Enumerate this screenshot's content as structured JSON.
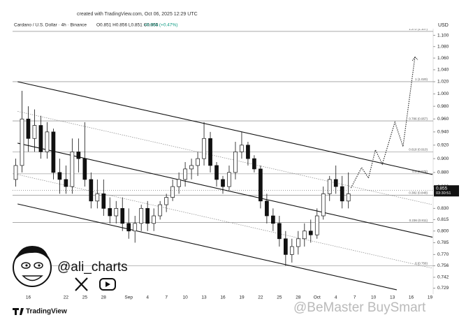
{
  "chart_data": {
    "type": "candlestick",
    "created": "created with TradingView.com, Oct 06, 2025 12:29 UTC",
    "symbol": "Cardano / U.S. Dollar · 4h · Binance",
    "ohlc": "O0.851 H0.856 L0.851 C0.855",
    "change": "+0.004 (+0.47%)",
    "currency": "USD",
    "log_scale": true,
    "ylim": [
      0.722,
      1.112
    ],
    "yticks": [
      {
        "value": 1.1,
        "label": "1.100"
      },
      {
        "value": 1.08,
        "label": "1.080"
      },
      {
        "value": 1.06,
        "label": "1.060"
      },
      {
        "value": 1.04,
        "label": "1.040"
      },
      {
        "value": 1.02,
        "label": "1.020"
      },
      {
        "value": 1.0,
        "label": "1.000"
      },
      {
        "value": 0.98,
        "label": "0.980"
      },
      {
        "value": 0.96,
        "label": "0.960"
      },
      {
        "value": 0.94,
        "label": "0.940"
      },
      {
        "value": 0.92,
        "label": "0.920"
      },
      {
        "value": 0.9,
        "label": "0.900"
      },
      {
        "value": 0.88,
        "label": "0.880"
      },
      {
        "value": 0.86,
        "label": "0.860"
      },
      {
        "value": 0.83,
        "label": "0.830"
      },
      0.815,
      {
        "value": 0.8,
        "label": "0.800"
      },
      0.785,
      {
        "value": 0.77,
        "label": "0.770"
      },
      0.756,
      0.742,
      0.729
    ],
    "xlim": [
      -2.5,
      64.5
    ],
    "xticks": [
      {
        "value": 0,
        "label": "16"
      },
      {
        "value": 6,
        "label": "22"
      },
      {
        "value": 9,
        "label": "25"
      },
      {
        "value": 12,
        "label": "28"
      },
      {
        "value": 16,
        "label": "Sep"
      },
      {
        "value": 19,
        "label": "4"
      },
      {
        "value": 22,
        "label": "7"
      },
      {
        "value": 25,
        "label": "10"
      },
      {
        "value": 28,
        "label": "13"
      },
      {
        "value": 31,
        "label": "16"
      },
      {
        "value": 34,
        "label": "19"
      },
      {
        "value": 37,
        "label": "22"
      },
      {
        "value": 40,
        "label": "25"
      },
      {
        "value": 43,
        "label": "28"
      },
      {
        "value": 46,
        "label": "Oct"
      },
      {
        "value": 49,
        "label": "4"
      },
      {
        "value": 52,
        "label": "7"
      },
      {
        "value": 55,
        "label": "10"
      },
      {
        "value": 58,
        "label": "13"
      },
      {
        "value": 61,
        "label": "16"
      },
      {
        "value": 64,
        "label": "19"
      }
    ],
    "up_color": "#ffffff",
    "down_color": "#111111",
    "candles": {
      "x": [
        -2,
        -1,
        0,
        1,
        2,
        3,
        4,
        5,
        6,
        7,
        8,
        9,
        10,
        11,
        12,
        13,
        14,
        15,
        16,
        17,
        18,
        19,
        20,
        21,
        22,
        23,
        24,
        25,
        26,
        27,
        28,
        29,
        30,
        31,
        32,
        33,
        34,
        35,
        36,
        37,
        38,
        39,
        40,
        41,
        42,
        43,
        44,
        45,
        46,
        47,
        48,
        49,
        50,
        51
      ],
      "open": [
        0.87,
        0.89,
        0.96,
        0.93,
        0.95,
        0.91,
        0.94,
        0.88,
        0.87,
        0.86,
        0.91,
        0.9,
        0.87,
        0.84,
        0.85,
        0.83,
        0.82,
        0.83,
        0.81,
        0.8,
        0.81,
        0.83,
        0.81,
        0.82,
        0.835,
        0.845,
        0.86,
        0.87,
        0.885,
        0.89,
        0.9,
        0.93,
        0.89,
        0.87,
        0.86,
        0.88,
        0.91,
        0.92,
        0.9,
        0.885,
        0.84,
        0.82,
        0.81,
        0.79,
        0.77,
        0.78,
        0.79,
        0.8,
        0.795,
        0.82,
        0.85,
        0.87,
        0.86,
        0.84
      ],
      "high": [
        0.9,
        1.005,
        0.98,
        0.975,
        0.965,
        0.955,
        0.945,
        0.9,
        0.89,
        0.93,
        0.93,
        0.955,
        0.88,
        0.87,
        0.87,
        0.845,
        0.84,
        0.845,
        0.83,
        0.82,
        0.835,
        0.84,
        0.83,
        0.84,
        0.85,
        0.87,
        0.88,
        0.895,
        0.9,
        0.91,
        0.955,
        0.94,
        0.895,
        0.875,
        0.89,
        0.925,
        0.94,
        0.925,
        0.905,
        0.89,
        0.85,
        0.83,
        0.82,
        0.8,
        0.79,
        0.8,
        0.81,
        0.815,
        0.83,
        0.86,
        0.875,
        0.89,
        0.875,
        0.88
      ],
      "low": [
        0.86,
        0.88,
        0.91,
        0.91,
        0.9,
        0.9,
        0.87,
        0.85,
        0.85,
        0.85,
        0.88,
        0.86,
        0.83,
        0.83,
        0.82,
        0.81,
        0.81,
        0.8,
        0.79,
        0.785,
        0.8,
        0.8,
        0.8,
        0.815,
        0.825,
        0.84,
        0.85,
        0.86,
        0.87,
        0.875,
        0.89,
        0.88,
        0.86,
        0.85,
        0.855,
        0.87,
        0.9,
        0.89,
        0.88,
        0.83,
        0.81,
        0.8,
        0.78,
        0.756,
        0.76,
        0.77,
        0.78,
        0.785,
        0.79,
        0.815,
        0.84,
        0.85,
        0.83,
        0.83
      ],
      "close": [
        0.89,
        0.96,
        0.93,
        0.95,
        0.91,
        0.94,
        0.88,
        0.87,
        0.86,
        0.91,
        0.9,
        0.87,
        0.84,
        0.85,
        0.83,
        0.82,
        0.83,
        0.81,
        0.8,
        0.81,
        0.83,
        0.81,
        0.82,
        0.835,
        0.845,
        0.86,
        0.87,
        0.885,
        0.89,
        0.9,
        0.93,
        0.89,
        0.87,
        0.86,
        0.88,
        0.91,
        0.92,
        0.9,
        0.885,
        0.84,
        0.82,
        0.81,
        0.79,
        0.77,
        0.78,
        0.79,
        0.8,
        0.795,
        0.82,
        0.85,
        0.87,
        0.86,
        0.84,
        0.85
      ]
    },
    "levels": [
      {
        "label": "1.272 (1.107)",
        "value": 1.107
      },
      {
        "label": "1 (1.020)",
        "value": 1.02
      },
      {
        "label": "0.786 (0.957)",
        "value": 0.957
      },
      {
        "label": "0.618 (0.910)",
        "value": 0.91
      },
      {
        "label": "0.5 (0.878)",
        "value": 0.878
      },
      {
        "label": "0.382 (0.848)",
        "value": 0.848
      },
      {
        "label": "0.236 (0.811)",
        "value": 0.811
      },
      {
        "label": "0 (0.756)",
        "value": 0.756
      }
    ],
    "channel": [
      {
        "style": "solid",
        "x": [
          -1.7,
          64.4
        ],
        "y": [
          1.02,
          0.877
        ]
      },
      {
        "style": "dotted",
        "x": [
          -1.7,
          64.4
        ],
        "y": [
          0.972,
          0.835
        ]
      },
      {
        "style": "solid",
        "x": [
          -1.7,
          64.4
        ],
        "y": [
          0.923,
          0.792
        ]
      },
      {
        "style": "dotted",
        "x": [
          -1.7,
          64.4
        ],
        "y": [
          0.877,
          0.753
        ]
      },
      {
        "style": "solid",
        "x": [
          -1.7,
          58.7
        ],
        "y": [
          0.836,
          0.727
        ]
      }
    ],
    "projection": {
      "x": [
        51.4,
        53.1,
        54.2,
        55.3,
        56.4,
        58.4,
        59.7,
        61.6
      ],
      "y": [
        0.858,
        0.887,
        0.872,
        0.913,
        0.892,
        0.955,
        0.918,
        1.062
      ]
    },
    "last": {
      "price": 0.855,
      "countdown": "03:30:51"
    },
    "handle": "@ali_charts",
    "brand": "TradingView",
    "watermark": "@BeMaster BuySmart"
  }
}
